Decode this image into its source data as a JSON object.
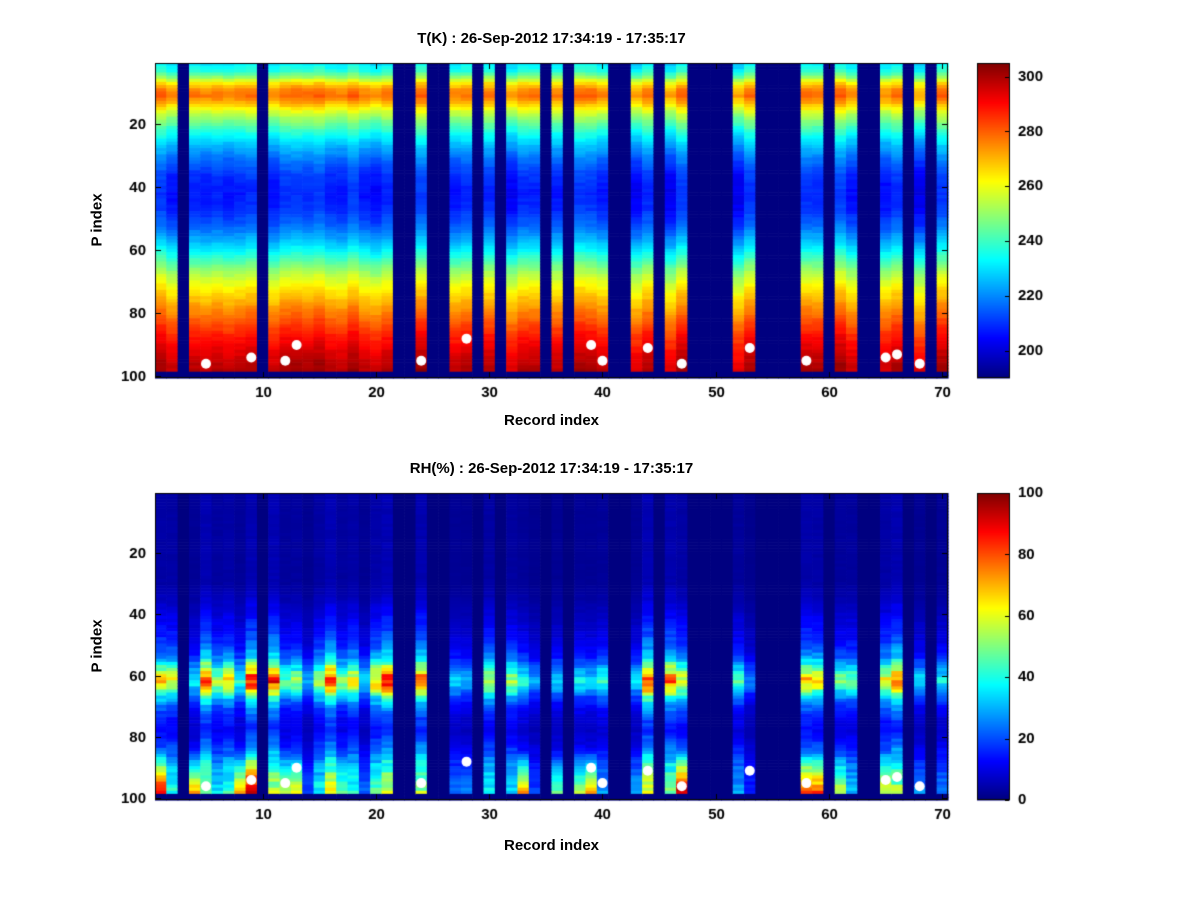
{
  "figure": {
    "background": "#ffffff",
    "axis_color": "#000000",
    "text_color": "#000000"
  },
  "chart_data": [
    {
      "type": "heatmap",
      "title": "T(K) : 26-Sep-2012 17:34:19 - 17:35:17",
      "xlabel": "Record index",
      "ylabel": "P index",
      "colormap": "jet",
      "grid": false,
      "x_range": [
        1,
        70
      ],
      "y_range": [
        1,
        100
      ],
      "y_axis_reversed": true,
      "x_ticks": [
        10,
        20,
        30,
        40,
        50,
        60,
        70
      ],
      "y_ticks": [
        20,
        40,
        60,
        80,
        100
      ],
      "clim": [
        190,
        305
      ],
      "colorbar_ticks": [
        200,
        220,
        240,
        260,
        280,
        300
      ],
      "profile": [
        [
          1,
          231
        ],
        [
          3,
          236
        ],
        [
          5,
          248
        ],
        [
          7,
          264
        ],
        [
          9,
          274
        ],
        [
          11,
          277
        ],
        [
          13,
          270
        ],
        [
          16,
          256
        ],
        [
          19,
          246
        ],
        [
          23,
          234
        ],
        [
          27,
          224
        ],
        [
          31,
          216
        ],
        [
          36,
          209
        ],
        [
          42,
          206
        ],
        [
          47,
          208
        ],
        [
          52,
          214
        ],
        [
          57,
          224
        ],
        [
          62,
          237
        ],
        [
          67,
          251
        ],
        [
          72,
          262
        ],
        [
          77,
          271
        ],
        [
          82,
          279
        ],
        [
          87,
          287
        ],
        [
          92,
          293
        ],
        [
          96,
          297
        ],
        [
          100,
          299
        ]
      ],
      "variation": {
        "mode": "offset",
        "column_amp": 10,
        "cell_amp": 3
      },
      "bottom_blank_from": 99,
      "missing_records": [
        3,
        10,
        22,
        23,
        25,
        26,
        29,
        31,
        35,
        37,
        41,
        42,
        45,
        48,
        49,
        50,
        51,
        54,
        55,
        56,
        57,
        60,
        63,
        64,
        67,
        69
      ],
      "markers": {
        "color": "#ffffff",
        "points": [
          [
            5,
            96
          ],
          [
            9,
            94
          ],
          [
            12,
            95
          ],
          [
            13,
            90
          ],
          [
            24,
            95
          ],
          [
            28,
            88
          ],
          [
            39,
            90
          ],
          [
            40,
            95
          ],
          [
            44,
            91
          ],
          [
            47,
            96
          ],
          [
            53,
            91
          ],
          [
            58,
            95
          ],
          [
            65,
            94
          ],
          [
            66,
            93
          ],
          [
            68,
            96
          ]
        ]
      }
    },
    {
      "type": "heatmap",
      "title": "RH(%) : 26-Sep-2012 17:34:19 - 17:35:17",
      "xlabel": "Record index",
      "ylabel": "P index",
      "colormap": "jet",
      "grid": false,
      "x_range": [
        1,
        70
      ],
      "y_range": [
        1,
        100
      ],
      "y_axis_reversed": true,
      "x_ticks": [
        10,
        20,
        30,
        40,
        50,
        60,
        70
      ],
      "y_ticks": [
        20,
        40,
        60,
        80,
        100
      ],
      "clim": [
        0,
        100
      ],
      "colorbar_ticks": [
        0,
        20,
        40,
        60,
        80,
        100
      ],
      "profile": [
        [
          1,
          3
        ],
        [
          30,
          3
        ],
        [
          35,
          5
        ],
        [
          40,
          8
        ],
        [
          45,
          11
        ],
        [
          50,
          15
        ],
        [
          54,
          22
        ],
        [
          57,
          34
        ],
        [
          60,
          48
        ],
        [
          62,
          52
        ],
        [
          64,
          44
        ],
        [
          67,
          28
        ],
        [
          70,
          18
        ],
        [
          74,
          12
        ],
        [
          78,
          10
        ],
        [
          82,
          14
        ],
        [
          86,
          20
        ],
        [
          90,
          26
        ],
        [
          94,
          30
        ],
        [
          97,
          33
        ],
        [
          100,
          35
        ]
      ],
      "variation": {
        "mode": "gain",
        "gain_min": 0.45,
        "gain_span": 1.25,
        "cell_gain_amp": 0.3,
        "bottom_boost": {
          "threshold": 0.55,
          "start_p": 84,
          "max": 55
        }
      },
      "bottom_blank_from": 99,
      "missing_records": [
        3,
        10,
        22,
        23,
        25,
        26,
        29,
        31,
        35,
        37,
        41,
        42,
        45,
        48,
        49,
        50,
        51,
        54,
        55,
        56,
        57,
        60,
        63,
        64,
        67,
        69
      ],
      "markers": {
        "color": "#ffffff",
        "points": [
          [
            5,
            96
          ],
          [
            9,
            94
          ],
          [
            12,
            95
          ],
          [
            13,
            90
          ],
          [
            24,
            95
          ],
          [
            28,
            88
          ],
          [
            39,
            90
          ],
          [
            40,
            95
          ],
          [
            44,
            91
          ],
          [
            47,
            96
          ],
          [
            53,
            91
          ],
          [
            58,
            95
          ],
          [
            65,
            94
          ],
          [
            66,
            93
          ],
          [
            68,
            96
          ]
        ]
      }
    }
  ]
}
